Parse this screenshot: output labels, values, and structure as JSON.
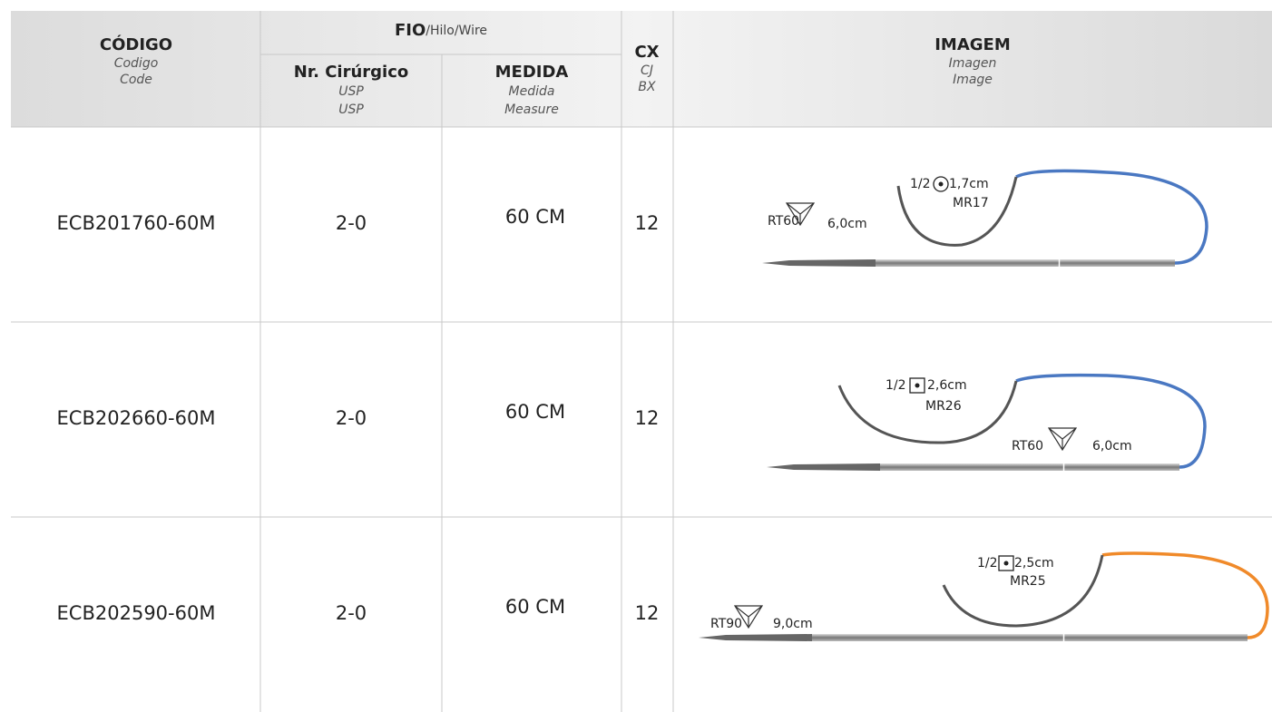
{
  "table": {
    "header": {
      "codigo": {
        "title": "CÓDIGO",
        "es": "Codigo",
        "en": "Code"
      },
      "fio": {
        "title": "FIO",
        "rest": "/Hilo/Wire"
      },
      "nr": {
        "title": "Nr. Cirúrgico",
        "es": "USP",
        "en": "USP"
      },
      "medida": {
        "title": "MEDIDA",
        "es": "Medida",
        "en": "Measure"
      },
      "cx": {
        "title": "CX",
        "es": "CJ",
        "en": "BX"
      },
      "imagem": {
        "title": "IMAGEM",
        "es": "Imagen",
        "en": "Image"
      }
    },
    "rows": [
      {
        "code": "ECB201760-60M",
        "usp": "2-0",
        "measure": "60 CM",
        "box": "12",
        "image": {
          "curve_fraction": "1/2",
          "curve_size": "1,7cm",
          "curve_code": "MR17",
          "curve_shape": "round",
          "straight_code": "RT60",
          "straight_size": "6,0cm",
          "thread_color": "#4a78c2"
        }
      },
      {
        "code": "ECB202660-60M",
        "usp": "2-0",
        "measure": "60 CM",
        "box": "12",
        "image": {
          "curve_fraction": "1/2",
          "curve_size": "2,6cm",
          "curve_code": "MR26",
          "curve_shape": "square",
          "straight_code": "RT60",
          "straight_size": "6,0cm",
          "thread_color": "#4a78c2"
        }
      },
      {
        "code": "ECB202590-60M",
        "usp": "2-0",
        "measure": "60 CM",
        "box": "12",
        "image": {
          "curve_fraction": "1/2",
          "curve_size": "2,5cm",
          "curve_code": "MR25",
          "curve_shape": "square",
          "straight_code": "RT90",
          "straight_size": "9,0cm",
          "thread_color": "#f08a2a"
        }
      }
    ]
  }
}
